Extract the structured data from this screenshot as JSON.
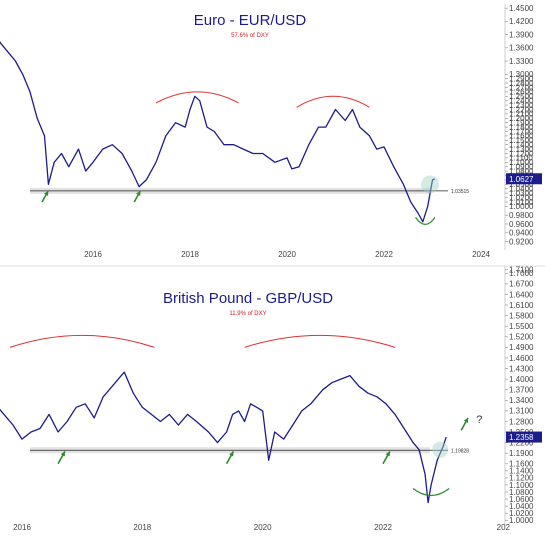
{
  "chart_data": [
    {
      "type": "line",
      "title": "Euro - EUR/USD",
      "subtitle": "57.6% of DXY",
      "ylim": [
        0.91,
        1.455
      ],
      "y_ticks": [
        "1.4500",
        "1.4200",
        "1.3900",
        "1.3600",
        "1.3300",
        "1.3000",
        "1.2900",
        "1.2800",
        "1.2700",
        "1.2600",
        "1.2500",
        "1.2400",
        "1.2300",
        "1.2200",
        "1.2100",
        "1.2000",
        "1.1900",
        "1.1800",
        "1.1700",
        "1.1600",
        "1.1500",
        "1.1400",
        "1.1300",
        "1.1200",
        "1.1100",
        "1.1000",
        "1.0900",
        "1.0800",
        "1.0700",
        "1.0600",
        "1.0500",
        "1.0400",
        "1.0300",
        "1.0200",
        "1.0100",
        "1.0000",
        "0.9800",
        "0.9600",
        "0.9400",
        "0.9200"
      ],
      "x_ticks": [
        "4",
        "2016",
        "2018",
        "2020",
        "2022",
        "2024"
      ],
      "x_tick_years": [
        2014.0,
        2016.0,
        2018.0,
        2020.0,
        2022.0,
        2024.0
      ],
      "series": [
        {
          "points": [
            [
              2013.95,
              1.395
            ],
            [
              2014.1,
              1.37
            ],
            [
              2014.25,
              1.35
            ],
            [
              2014.4,
              1.33
            ],
            [
              2014.55,
              1.3
            ],
            [
              2014.7,
              1.26
            ],
            [
              2014.85,
              1.2
            ],
            [
              2015.0,
              1.16
            ],
            [
              2015.08,
              1.05
            ],
            [
              2015.2,
              1.1
            ],
            [
              2015.35,
              1.12
            ],
            [
              2015.5,
              1.09
            ],
            [
              2015.7,
              1.13
            ],
            [
              2015.85,
              1.08
            ],
            [
              2016.0,
              1.1
            ],
            [
              2016.2,
              1.13
            ],
            [
              2016.4,
              1.14
            ],
            [
              2016.6,
              1.12
            ],
            [
              2016.8,
              1.08
            ],
            [
              2016.95,
              1.045
            ],
            [
              2017.1,
              1.06
            ],
            [
              2017.3,
              1.1
            ],
            [
              2017.5,
              1.16
            ],
            [
              2017.7,
              1.19
            ],
            [
              2017.9,
              1.18
            ],
            [
              2018.0,
              1.22
            ],
            [
              2018.1,
              1.25
            ],
            [
              2018.2,
              1.24
            ],
            [
              2018.35,
              1.18
            ],
            [
              2018.5,
              1.17
            ],
            [
              2018.7,
              1.14
            ],
            [
              2018.9,
              1.14
            ],
            [
              2019.1,
              1.13
            ],
            [
              2019.3,
              1.12
            ],
            [
              2019.5,
              1.12
            ],
            [
              2019.75,
              1.1
            ],
            [
              2020.0,
              1.11
            ],
            [
              2020.1,
              1.085
            ],
            [
              2020.25,
              1.09
            ],
            [
              2020.45,
              1.14
            ],
            [
              2020.65,
              1.18
            ],
            [
              2020.8,
              1.18
            ],
            [
              2021.0,
              1.22
            ],
            [
              2021.2,
              1.195
            ],
            [
              2021.35,
              1.22
            ],
            [
              2021.5,
              1.18
            ],
            [
              2021.7,
              1.16
            ],
            [
              2021.85,
              1.13
            ],
            [
              2022.0,
              1.135
            ],
            [
              2022.2,
              1.09
            ],
            [
              2022.4,
              1.05
            ],
            [
              2022.55,
              1.01
            ],
            [
              2022.7,
              0.985
            ],
            [
              2022.8,
              0.965
            ],
            [
              2022.9,
              1.0
            ],
            [
              2023.0,
              1.06
            ],
            [
              2023.05,
              1.0627
            ]
          ]
        }
      ],
      "support_level": 1.03515,
      "support_label": "1.03515",
      "last_value": 1.0627,
      "last_label": "1.0627",
      "colors": {
        "line": "#1c1c8c",
        "arc": "#e0312d",
        "bottom_arc": "#2e8b2e",
        "arrow": "#2e8b2e",
        "tag": "#1c1c8c"
      }
    },
    {
      "type": "line",
      "title": "British Pound - GBP/USD",
      "subtitle": "11.9% of DXY",
      "ylim": [
        0.995,
        1.715
      ],
      "y_ticks": [
        "1.7100",
        "1.7000",
        "1.6700",
        "1.6400",
        "1.6100",
        "1.5800",
        "1.5500",
        "1.5200",
        "1.4900",
        "1.4600",
        "1.4300",
        "1.4000",
        "1.3700",
        "1.3400",
        "1.3100",
        "1.2800",
        "1.2500",
        "1.2200",
        "1.1900",
        "1.1600",
        "1.1400",
        "1.1200",
        "1.1000",
        "1.0800",
        "1.0600",
        "1.0400",
        "1.0200",
        "1.0000"
      ],
      "x_ticks": [
        "2016",
        "2018",
        "2020",
        "2022",
        "202"
      ],
      "x_tick_years": [
        2016.0,
        2018.0,
        2020.0,
        2022.0,
        2024.0
      ],
      "series": [
        {
          "points": [
            [
              2014.0,
              1.53
            ],
            [
              2014.15,
              1.56
            ],
            [
              2014.3,
              1.52
            ],
            [
              2014.45,
              1.5
            ],
            [
              2014.6,
              1.46
            ],
            [
              2014.75,
              1.44
            ],
            [
              2014.9,
              1.42
            ],
            [
              2015.05,
              1.4
            ],
            [
              2015.2,
              1.46
            ],
            [
              2015.35,
              1.44
            ],
            [
              2015.5,
              1.39
            ],
            [
              2015.6,
              1.32
            ],
            [
              2015.7,
              1.3
            ],
            [
              2015.85,
              1.27
            ],
            [
              2016.0,
              1.23
            ],
            [
              2016.15,
              1.25
            ],
            [
              2016.3,
              1.26
            ],
            [
              2016.45,
              1.3
            ],
            [
              2016.6,
              1.25
            ],
            [
              2016.75,
              1.28
            ],
            [
              2016.9,
              1.32
            ],
            [
              2017.05,
              1.33
            ],
            [
              2017.2,
              1.29
            ],
            [
              2017.35,
              1.35
            ],
            [
              2017.5,
              1.38
            ],
            [
              2017.6,
              1.4
            ],
            [
              2017.7,
              1.42
            ],
            [
              2017.85,
              1.36
            ],
            [
              2018.0,
              1.32
            ],
            [
              2018.15,
              1.3
            ],
            [
              2018.3,
              1.28
            ],
            [
              2018.45,
              1.3
            ],
            [
              2018.6,
              1.27
            ],
            [
              2018.75,
              1.3
            ],
            [
              2018.9,
              1.28
            ],
            [
              2019.1,
              1.25
            ],
            [
              2019.25,
              1.22
            ],
            [
              2019.4,
              1.25
            ],
            [
              2019.5,
              1.3
            ],
            [
              2019.6,
              1.31
            ],
            [
              2019.7,
              1.28
            ],
            [
              2019.8,
              1.33
            ],
            [
              2020.0,
              1.31
            ],
            [
              2020.1,
              1.17
            ],
            [
              2020.2,
              1.25
            ],
            [
              2020.35,
              1.23
            ],
            [
              2020.5,
              1.27
            ],
            [
              2020.65,
              1.31
            ],
            [
              2020.8,
              1.33
            ],
            [
              2021.0,
              1.37
            ],
            [
              2021.15,
              1.39
            ],
            [
              2021.3,
              1.4
            ],
            [
              2021.45,
              1.41
            ],
            [
              2021.6,
              1.38
            ],
            [
              2021.75,
              1.36
            ],
            [
              2021.9,
              1.35
            ],
            [
              2022.05,
              1.33
            ],
            [
              2022.2,
              1.3
            ],
            [
              2022.35,
              1.26
            ],
            [
              2022.5,
              1.22
            ],
            [
              2022.6,
              1.2
            ],
            [
              2022.7,
              1.13
            ],
            [
              2022.75,
              1.05
            ],
            [
              2022.8,
              1.1
            ],
            [
              2022.9,
              1.17
            ],
            [
              2023.0,
              1.21
            ],
            [
              2023.05,
              1.2358
            ]
          ]
        }
      ],
      "support_level": 1.19828,
      "support_label": "1.19828",
      "last_value": 1.2358,
      "last_label": "1.2358",
      "note": "?",
      "colors": {
        "line": "#1c1c8c",
        "arc": "#e0312d",
        "bottom_arc": "#2e8b2e",
        "arrow": "#2e8b2e",
        "tag": "#1c1c8c"
      }
    }
  ]
}
